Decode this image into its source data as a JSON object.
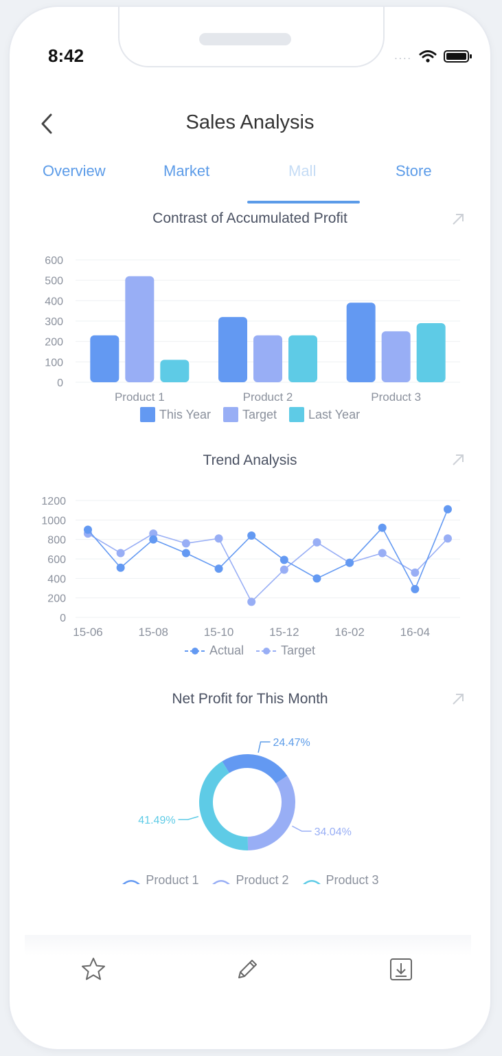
{
  "status_bar": {
    "time": "8:42",
    "signal": "....",
    "wifi_icon": "wifi-icon",
    "battery_icon": "battery-icon"
  },
  "header": {
    "title": "Sales Analysis",
    "back_icon": "chevron-left-icon"
  },
  "tabs": [
    {
      "label": "Overview",
      "active": false
    },
    {
      "label": "Market",
      "active": false
    },
    {
      "label": "Mall",
      "active": true
    },
    {
      "label": "Store",
      "active": false
    }
  ],
  "colors": {
    "this_year": "#6399f2",
    "target": "#98aef5",
    "last_year": "#5ecbe6",
    "accent": "#5b9be8"
  },
  "charts": {
    "bar": {
      "title": "Contrast of Accumulated Profit",
      "chart_data": {
        "type": "bar",
        "categories": [
          "Product 1",
          "Product 2",
          "Product 3"
        ],
        "series": [
          {
            "name": "This Year",
            "values": [
              230,
              320,
              390
            ]
          },
          {
            "name": "Target",
            "values": [
              520,
              230,
              250
            ]
          },
          {
            "name": "Last Year",
            "values": [
              110,
              230,
              290
            ]
          }
        ],
        "yticks": [
          "0",
          "100",
          "200",
          "300",
          "400",
          "500",
          "600"
        ],
        "ylim": [
          0,
          600
        ],
        "grid": true,
        "legend_position": "bottom"
      }
    },
    "line": {
      "title": "Trend Analysis",
      "chart_data": {
        "type": "line",
        "x": [
          "15-06",
          "15-07",
          "15-08",
          "15-09",
          "15-10",
          "15-11",
          "15-12",
          "16-01",
          "16-02",
          "16-03",
          "16-04",
          "16-05"
        ],
        "xticks": [
          "15-06",
          "15-08",
          "15-10",
          "15-12",
          "16-02",
          "16-04"
        ],
        "series": [
          {
            "name": "Actual",
            "values": [
              900,
              510,
              800,
              660,
              500,
              840,
              590,
              400,
              560,
              920,
              290,
              1110
            ]
          },
          {
            "name": "Target",
            "values": [
              860,
              660,
              860,
              760,
              810,
              160,
              490,
              770,
              560,
              660,
              460,
              810
            ]
          }
        ],
        "yticks": [
          "0",
          "200",
          "400",
          "600",
          "800",
          "1000",
          "1200"
        ],
        "ylim": [
          0,
          1200
        ],
        "grid": true,
        "legend_position": "bottom"
      }
    },
    "pie": {
      "title": "Net Profit for This Month",
      "chart_data": {
        "type": "pie",
        "donut": true,
        "categories": [
          "Product 1",
          "Product 2",
          "Product 3"
        ],
        "values": [
          24.47,
          34.04,
          41.49
        ],
        "labels": [
          "24.47%",
          "34.04%",
          "41.49%"
        ],
        "legend_position": "bottom"
      }
    }
  },
  "bottom_toolbar": {
    "icons": [
      "star-icon",
      "pencil-icon",
      "download-icon"
    ]
  }
}
